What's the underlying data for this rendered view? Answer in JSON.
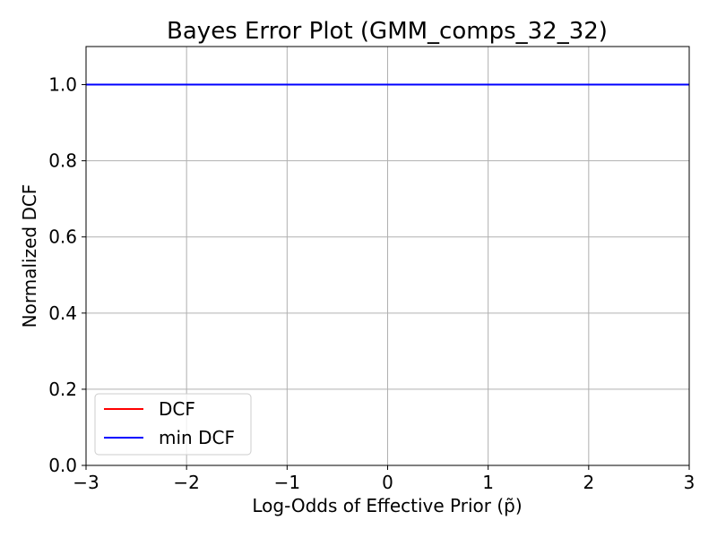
{
  "chart_data": {
    "type": "line",
    "title": "Bayes Error Plot (GMM_comps_32_32)",
    "xlabel": "Log-Odds of Effective Prior (p̃)",
    "ylabel": "Normalized DCF",
    "xlim": [
      -3,
      3
    ],
    "ylim": [
      0,
      1.1
    ],
    "xticks": [
      -3,
      -2,
      -1,
      0,
      1,
      2,
      3
    ],
    "xtick_labels": [
      "−3",
      "−2",
      "−1",
      "0",
      "1",
      "2",
      "3"
    ],
    "yticks": [
      0.0,
      0.2,
      0.4,
      0.6,
      0.8,
      1.0
    ],
    "ytick_labels": [
      "0.0",
      "0.2",
      "0.4",
      "0.6",
      "0.8",
      "1.0"
    ],
    "grid": true,
    "legend_position": "lower-left",
    "series": [
      {
        "name": "DCF",
        "color": "#ff0000",
        "x": [
          -3,
          3
        ],
        "y": [
          1.0,
          1.0
        ]
      },
      {
        "name": "min DCF",
        "color": "#0000ff",
        "x": [
          -3,
          3
        ],
        "y": [
          1.0,
          1.0
        ]
      }
    ]
  }
}
